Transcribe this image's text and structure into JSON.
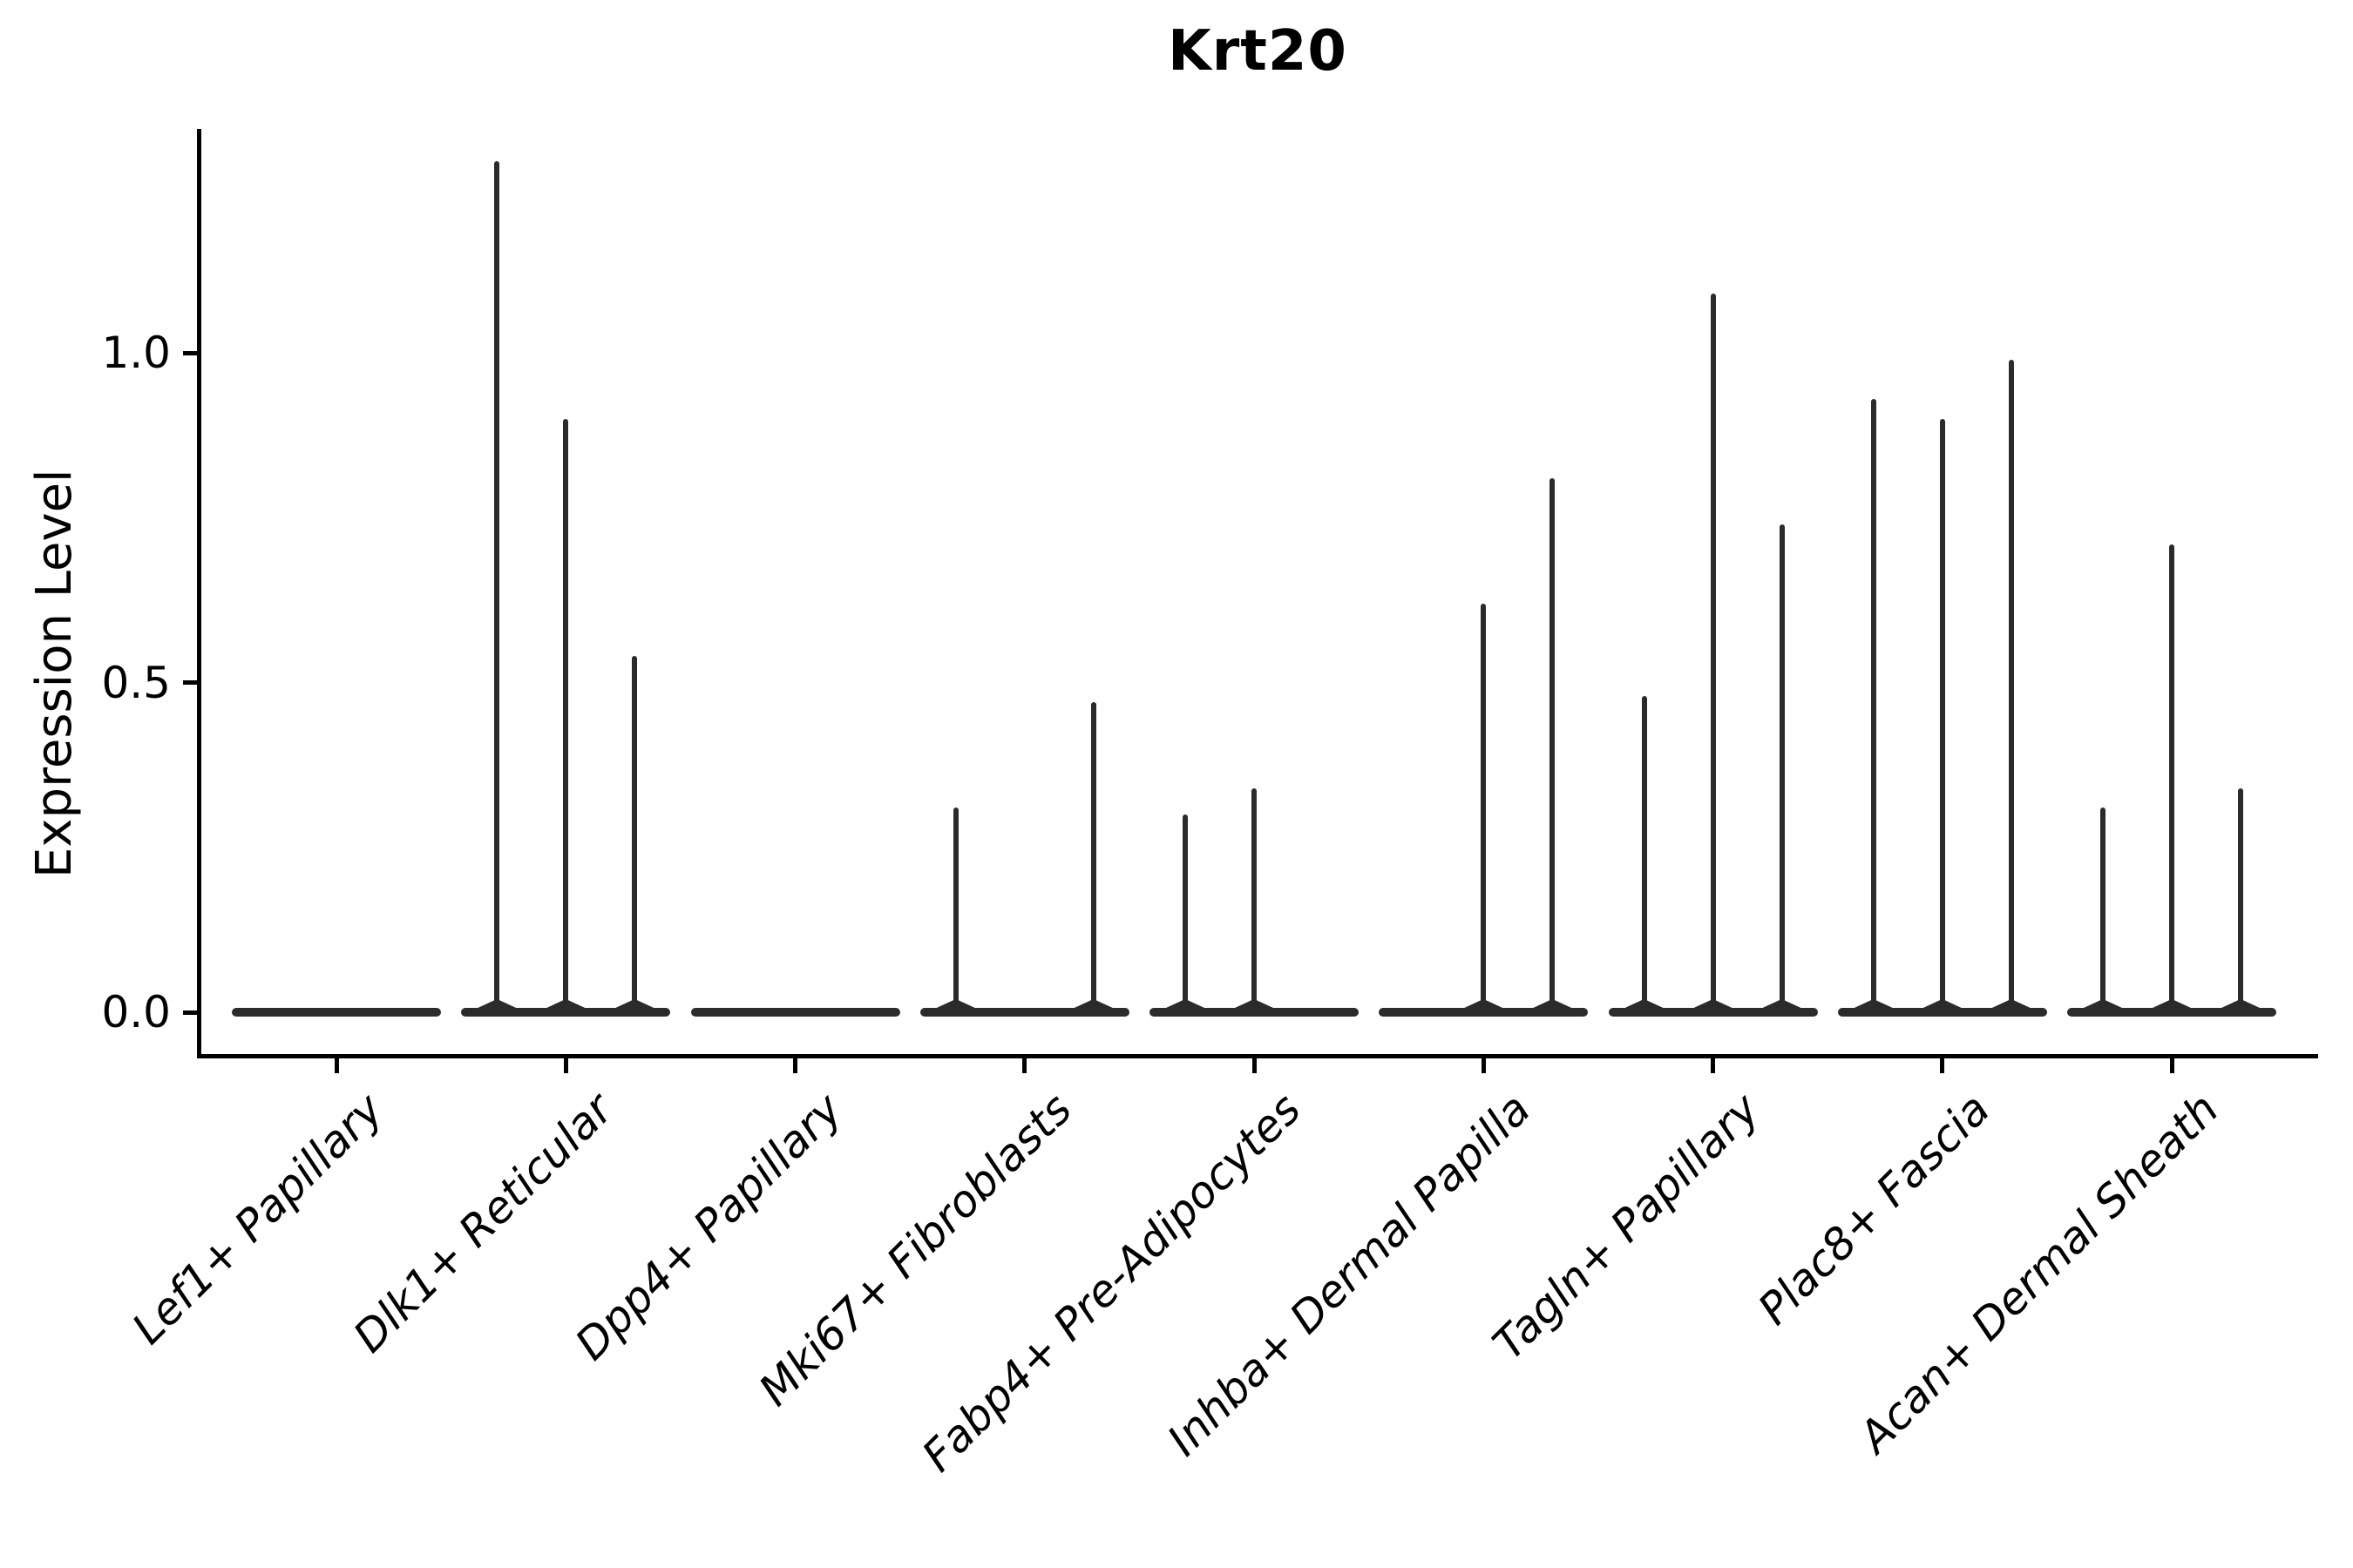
{
  "chart_data": {
    "type": "violin",
    "title": "Krt20",
    "xlabel": "",
    "ylabel": "Expression Level",
    "ylim": [
      -0.08,
      1.34
    ],
    "grid": false,
    "legend": null,
    "ink_color": "#2b2b2e",
    "axis_color": "#000000",
    "yticks": [
      {
        "label": "1.0",
        "value": 1.0
      },
      {
        "label": "0.5",
        "value": 0.5
      },
      {
        "label": "0.0",
        "value": 0.0
      }
    ],
    "violins_per_category": 3,
    "value_meaning": "peak expression level reached by each narrow violin spike; 0 means the violin is fully collapsed on the baseline",
    "categories": [
      "Lef1+ Papillary",
      "Dlk1+ Reticular",
      "Dpp4+ Papillary",
      "Mki67+ Fibroblasts",
      "Fabp4+ Pre-Adipocytes",
      "Inhba+ Dermal Papilla",
      "Tagln+ Papillary",
      "Plac8+ Fascia",
      "Acan+ Dermal Sheath"
    ],
    "values": [
      [
        0,
        0,
        0
      ],
      [
        1.29,
        0.9,
        0.54
      ],
      [
        0,
        0,
        0
      ],
      [
        0.31,
        0,
        0.47
      ],
      [
        0.3,
        0.34,
        0
      ],
      [
        0,
        0.62,
        0.81
      ],
      [
        0.48,
        1.09,
        0.74
      ],
      [
        0.93,
        0.9,
        0.99
      ],
      [
        0.31,
        0.71,
        0.34
      ]
    ]
  }
}
